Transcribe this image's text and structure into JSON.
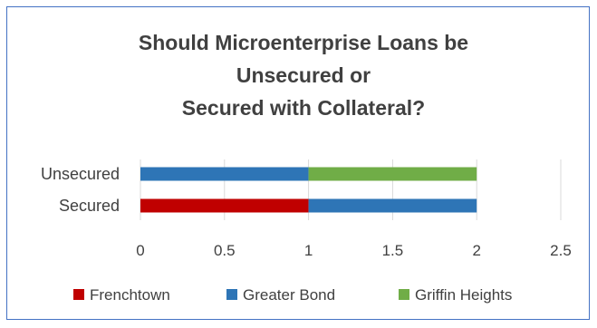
{
  "chart_data": {
    "type": "bar",
    "orientation": "horizontal",
    "stacked": true,
    "title_lines": [
      "Should Microenterprise Loans be",
      "Unsecured or",
      "Secured with Collateral?"
    ],
    "categories": [
      "Unsecured",
      "Secured"
    ],
    "series": [
      {
        "name": "Frenchtown",
        "color": "#c00000",
        "values": [
          0,
          1
        ]
      },
      {
        "name": "Greater Bond",
        "color": "#2e75b6",
        "values": [
          1,
          1
        ]
      },
      {
        "name": "Griffin Heights",
        "color": "#70ad47",
        "values": [
          1,
          0
        ]
      }
    ],
    "xlim": [
      0,
      2.5
    ],
    "x_ticks": [
      "0",
      "0.5",
      "1",
      "1.5",
      "2",
      "2.5"
    ],
    "grid": true,
    "legend_position": "bottom"
  }
}
